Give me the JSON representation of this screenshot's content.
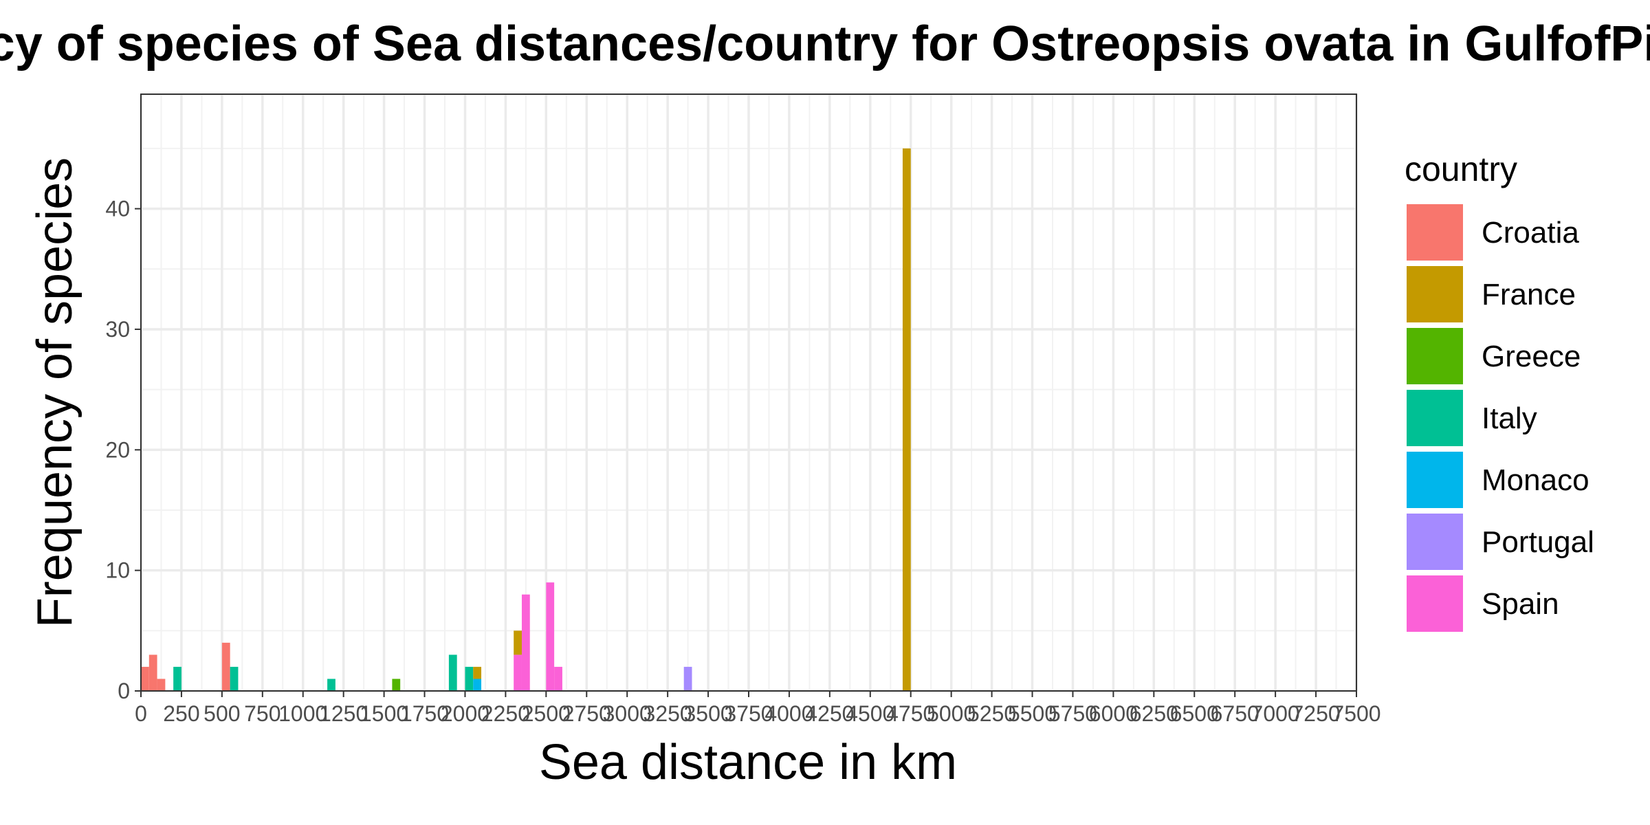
{
  "chart_data": {
    "type": "bar",
    "stacked": true,
    "title": "Frequency of species of Sea distances/country for Ostreopsis ovata in GulfofPiran",
    "xlabel": "Sea distance in km",
    "ylabel": "Frequency of species",
    "xlim": [
      0,
      7500
    ],
    "ylim": [
      0,
      49.5
    ],
    "bin_width": 50,
    "grid": true,
    "x_ticks": [
      0,
      250,
      500,
      750,
      1000,
      1250,
      1500,
      1750,
      2000,
      2250,
      2500,
      2750,
      3000,
      3250,
      3500,
      3750,
      4000,
      4250,
      4500,
      4750,
      5000,
      5250,
      5500,
      5750,
      6000,
      6250,
      6500,
      6750,
      7000,
      7250,
      7500
    ],
    "x_tick_labels": [
      "0",
      "250",
      "500",
      "750",
      "1000",
      "1250",
      "1500",
      "1750",
      "2000",
      "2250",
      "2500",
      "2750",
      "3000",
      "3250",
      "3500",
      "3750",
      "4000",
      "4250",
      "4500",
      "4750",
      "5000",
      "5250",
      "5500",
      "5750",
      "6000",
      "6250",
      "6500",
      "6750",
      "7000",
      "7250",
      "7500"
    ],
    "y_ticks": [
      0,
      10,
      20,
      30,
      40
    ],
    "y_tick_labels": [
      "0",
      "10",
      "20",
      "30",
      "40"
    ],
    "legend": {
      "title": "country",
      "position": "right",
      "entries": [
        "Croatia",
        "France",
        "Greece",
        "Italy",
        "Monaco",
        "Portugal",
        "Spain"
      ]
    },
    "colors": {
      "Croatia": "#F8766D",
      "France": "#C49A00",
      "Greece": "#53B400",
      "Italy": "#00C094",
      "Monaco": "#00B6EB",
      "Portugal": "#A58AFF",
      "Spain": "#FB61D7"
    },
    "bars": [
      {
        "x_start": 0,
        "segments": [
          {
            "country": "Croatia",
            "value": 2
          }
        ]
      },
      {
        "x_start": 50,
        "segments": [
          {
            "country": "Croatia",
            "value": 3
          }
        ]
      },
      {
        "x_start": 100,
        "segments": [
          {
            "country": "Croatia",
            "value": 1
          }
        ]
      },
      {
        "x_start": 200,
        "segments": [
          {
            "country": "Italy",
            "value": 2
          }
        ]
      },
      {
        "x_start": 500,
        "segments": [
          {
            "country": "Croatia",
            "value": 4
          }
        ]
      },
      {
        "x_start": 550,
        "segments": [
          {
            "country": "Italy",
            "value": 2
          }
        ]
      },
      {
        "x_start": 1150,
        "segments": [
          {
            "country": "Italy",
            "value": 1
          }
        ]
      },
      {
        "x_start": 1550,
        "segments": [
          {
            "country": "Greece",
            "value": 1
          }
        ]
      },
      {
        "x_start": 1900,
        "segments": [
          {
            "country": "Italy",
            "value": 3
          }
        ]
      },
      {
        "x_start": 2000,
        "segments": [
          {
            "country": "Italy",
            "value": 2
          }
        ]
      },
      {
        "x_start": 2050,
        "segments": [
          {
            "country": "Monaco",
            "value": 1
          },
          {
            "country": "France",
            "value": 1
          }
        ]
      },
      {
        "x_start": 2300,
        "segments": [
          {
            "country": "Spain",
            "value": 3
          },
          {
            "country": "France",
            "value": 2
          }
        ]
      },
      {
        "x_start": 2350,
        "segments": [
          {
            "country": "Spain",
            "value": 8
          }
        ]
      },
      {
        "x_start": 2500,
        "segments": [
          {
            "country": "Spain",
            "value": 9
          }
        ]
      },
      {
        "x_start": 2550,
        "segments": [
          {
            "country": "Spain",
            "value": 2
          }
        ]
      },
      {
        "x_start": 3350,
        "segments": [
          {
            "country": "Portugal",
            "value": 2
          }
        ]
      },
      {
        "x_start": 4700,
        "segments": [
          {
            "country": "France",
            "value": 45
          }
        ]
      }
    ]
  }
}
